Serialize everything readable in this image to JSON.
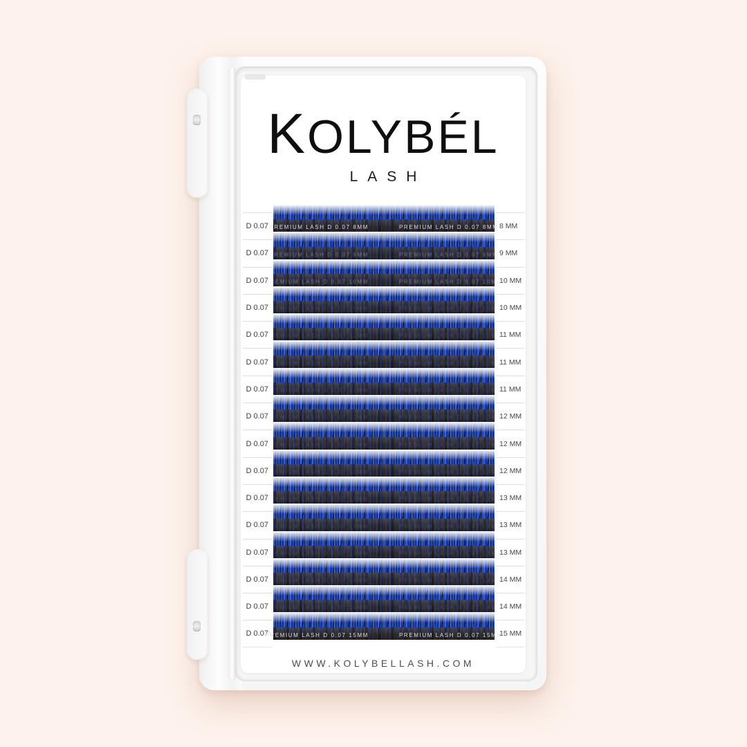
{
  "brand": {
    "name": "KOLYBÉL",
    "subtitle": "LASH"
  },
  "website": "WWW.KOLYBELLASH.COM",
  "tray": {
    "rows": [
      {
        "thickness": "D 0.07",
        "length": "8 MM",
        "strip_text": "PREMIUM LASH D 0.07 8MM"
      },
      {
        "thickness": "D 0.07",
        "length": "9 MM",
        "strip_text": "PREMIUM LASH D 0.07 9MM"
      },
      {
        "thickness": "D 0.07",
        "length": "10 MM",
        "strip_text": "PREMIUM LASH D 0.07 10MM"
      },
      {
        "thickness": "D 0.07",
        "length": "10 MM",
        "strip_text": "PREMIUM LASH D 0.07 10MM"
      },
      {
        "thickness": "D 0.07",
        "length": "11 MM",
        "strip_text": "PREMIUM LASH D 0.07 11MM"
      },
      {
        "thickness": "D 0.07",
        "length": "11 MM",
        "strip_text": "PREMIUM LASH D 0.07 11MM"
      },
      {
        "thickness": "D 0.07",
        "length": "11 MM",
        "strip_text": "PREMIUM LASH D 0.07 11MM"
      },
      {
        "thickness": "D 0.07",
        "length": "12 MM",
        "strip_text": "PREMIUM LASH D 0.07 12MM"
      },
      {
        "thickness": "D 0.07",
        "length": "12 MM",
        "strip_text": "PREMIUM LASH D 0.07 12MM"
      },
      {
        "thickness": "D 0.07",
        "length": "12 MM",
        "strip_text": "PREMIUM LASH D 0.07 12MM"
      },
      {
        "thickness": "D 0.07",
        "length": "13 MM",
        "strip_text": "PREMIUM LASH D 0.07 13MM"
      },
      {
        "thickness": "D 0.07",
        "length": "13 MM",
        "strip_text": "PREMIUM LASH D 0.07 13MM"
      },
      {
        "thickness": "D 0.07",
        "length": "13 MM",
        "strip_text": "PREMIUM LASH D 0.07 13MM"
      },
      {
        "thickness": "D 0.07",
        "length": "14 MM",
        "strip_text": "PREMIUM LASH D 0.07 14MM"
      },
      {
        "thickness": "D 0.07",
        "length": "14 MM",
        "strip_text": "PREMIUM LASH D 0.07 14MM"
      },
      {
        "thickness": "D 0.07",
        "length": "15 MM",
        "strip_text": "PREMIUM LASH D 0.07 15MM"
      }
    ]
  },
  "colors": {
    "background": "#fdf2ec",
    "case_white": "#fbfbfb",
    "lash_blue": "#2a52c4",
    "tape_dark": "#2c2a2e"
  }
}
